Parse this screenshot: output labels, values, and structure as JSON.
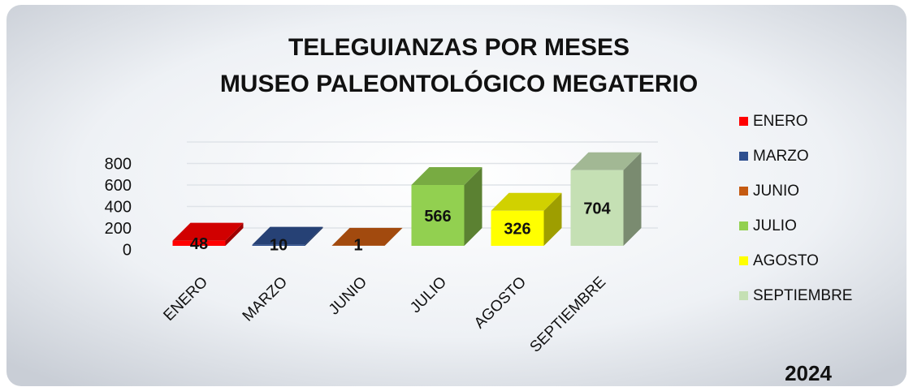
{
  "chart_data": {
    "type": "bar",
    "title": "TELEGUIANZAS POR MESES",
    "subtitle": "MUSEO PALEONTOLÓGICO MEGATERIO",
    "annotation": "2024",
    "categories": [
      "ENERO",
      "MARZO",
      "JUNIO",
      "JULIO",
      "AGOSTO",
      "SEPTIEMBRE"
    ],
    "values": [
      48,
      10,
      1,
      566,
      326,
      704
    ],
    "colors": [
      "#ff0000",
      "#2e4f8f",
      "#c55a11",
      "#92d050",
      "#ffff00",
      "#c5e0b4"
    ],
    "ylim": [
      0,
      800
    ],
    "yticks": [
      0,
      200,
      400,
      600,
      800
    ],
    "grid": true,
    "legend": "right"
  }
}
